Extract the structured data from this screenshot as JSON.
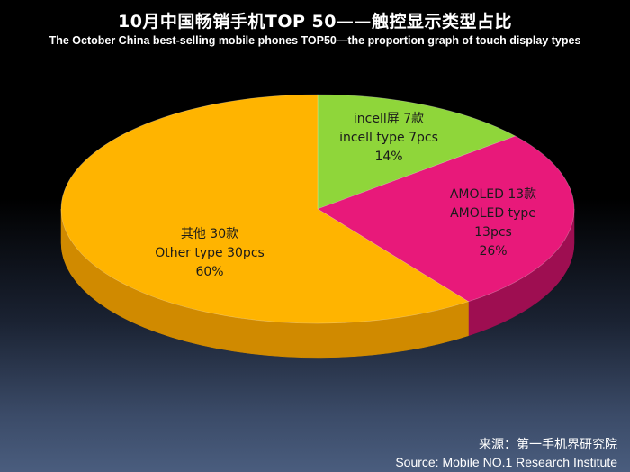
{
  "chart_data": {
    "type": "pie",
    "title": "10月中国畅销手机TOP 50——触控显示类型占比",
    "subtitle": "The October China best-selling mobile phones TOP50—the proportion graph of touch display types",
    "slices": [
      {
        "label_cn": "incell屏  7款",
        "label_en": "incell type  7pcs",
        "pct_label": "14%",
        "value": 7,
        "color": "#8fd63a",
        "side": "#6ea52c"
      },
      {
        "label_cn": "AMOLED 13款",
        "label_en": "AMOLED type",
        "count_label": "13pcs",
        "pct_label": "26%",
        "value": 13,
        "color": "#e8197a",
        "side": "#9e0e51"
      },
      {
        "label_cn": "其他 30款",
        "label_en": "Other type  30pcs",
        "pct_label": "60%",
        "value": 30,
        "color": "#ffb400",
        "side": "#d08a00"
      }
    ]
  },
  "source": {
    "cn": "来源：第一手机界研究院",
    "en": "Source: Mobile NO.1 Research Institute"
  }
}
